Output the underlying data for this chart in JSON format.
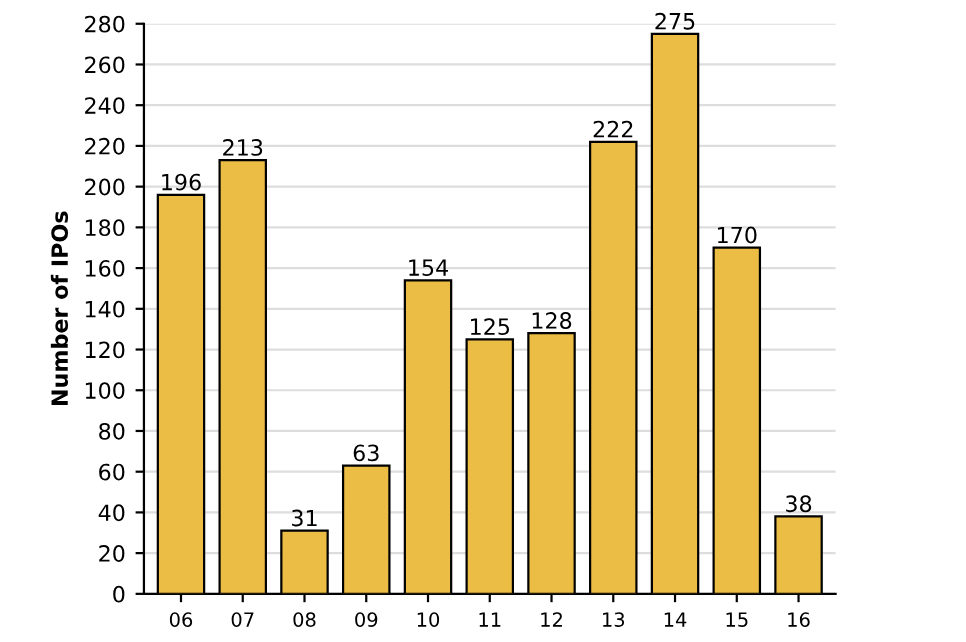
{
  "chart_data": {
    "type": "bar",
    "ylabel": "Number of IPOs",
    "categories": [
      "06",
      "07",
      "08",
      "09",
      "10",
      "11",
      "12",
      "13",
      "14",
      "15",
      "16"
    ],
    "values": [
      196,
      213,
      31,
      63,
      154,
      125,
      128,
      222,
      275,
      170,
      38
    ],
    "color": "#ebbd45",
    "ylim": [
      0,
      280
    ],
    "yticks": [
      0,
      20,
      40,
      60,
      80,
      100,
      120,
      140,
      160,
      180,
      200,
      220,
      240,
      260,
      280
    ],
    "grid": "y",
    "data_labels": true
  }
}
